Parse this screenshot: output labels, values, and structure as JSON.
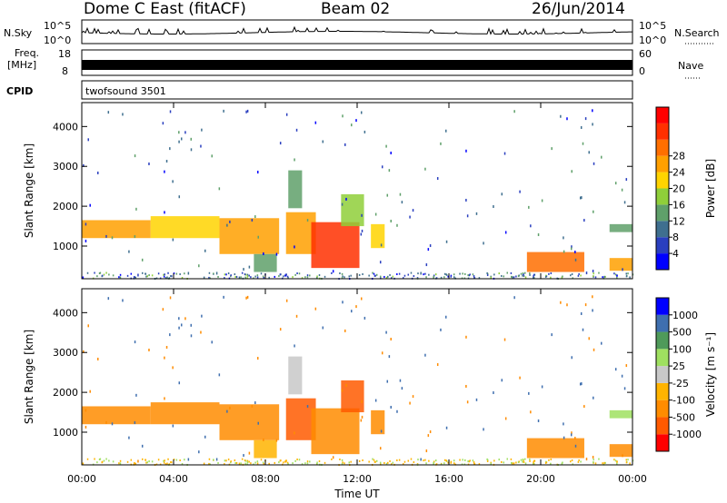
{
  "header": {
    "station": "Dome C East (fitACF)",
    "beam": "Beam 02",
    "date": "26/Jun/2014"
  },
  "side_labels": {
    "nsky": "N.Sky",
    "nsky_top": "10^5",
    "nsky_bottom": "10^0",
    "nsearch": "N.Search",
    "nsearch_top": "10^5",
    "nsearch_bottom": "10^0",
    "freq_l1": "Freq.",
    "freq_l2": "[MHz]",
    "freq_top": "18",
    "freq_bottom": "8",
    "nave": "Nave",
    "nave_top": "60",
    "nave_bottom": "0",
    "cpid": "CPID",
    "cpid_value": "twofsound 3501"
  },
  "colors": {
    "power_scale": [
      "#0000ff",
      "#2a3fbf",
      "#3f6f8f",
      "#5fa06a",
      "#8fcf3a",
      "#ffd400",
      "#ffa000",
      "#ff6f00",
      "#ff3000",
      "#ff0000"
    ],
    "velocity_scale": [
      "#ff0000",
      "#ff5a00",
      "#ff8c00",
      "#ffb400",
      "#c8c8c8",
      "#9fe060",
      "#4f9a5a",
      "#3f6faf",
      "#0000ff"
    ]
  },
  "chart_data": [
    {
      "type": "heatmap",
      "name": "power",
      "x_ticks": [
        "00:00",
        "04:00",
        "08:00",
        "12:00",
        "16:00",
        "20:00",
        "00:00"
      ],
      "xlim_hours": [
        0,
        24
      ],
      "xlabel": "Time UT",
      "ylabel": "Slant Range [km]",
      "y_ticks": [
        "1000",
        "2000",
        "3000",
        "4000"
      ],
      "ylim_km": [
        180,
        4600
      ],
      "colorbar_label": "Power [dB]",
      "colorbar_ticks": [
        "4",
        "8",
        "12",
        "16",
        "20",
        "24",
        "28"
      ],
      "colorbar_range": [
        0,
        32
      ],
      "regions": [
        {
          "t0": 0.0,
          "t1": 3.0,
          "r0": 1200,
          "r1": 1650,
          "value": 20
        },
        {
          "t0": 3.0,
          "t1": 6.0,
          "r0": 1200,
          "r1": 1750,
          "value": 18
        },
        {
          "t0": 6.0,
          "t1": 8.6,
          "r0": 800,
          "r1": 1700,
          "value": 21
        },
        {
          "t0": 7.5,
          "t1": 8.5,
          "r0": 350,
          "r1": 800,
          "value": 12
        },
        {
          "t0": 8.9,
          "t1": 10.2,
          "r0": 800,
          "r1": 1850,
          "value": 20
        },
        {
          "t0": 9.0,
          "t1": 9.6,
          "r0": 1950,
          "r1": 2900,
          "value": 10
        },
        {
          "t0": 10.0,
          "t1": 12.1,
          "r0": 450,
          "r1": 1600,
          "value": 28
        },
        {
          "t0": 11.3,
          "t1": 12.3,
          "r0": 1500,
          "r1": 2300,
          "value": 14
        },
        {
          "t0": 12.6,
          "t1": 13.2,
          "r0": 950,
          "r1": 1550,
          "value": 18
        },
        {
          "t0": 19.4,
          "t1": 21.9,
          "r0": 350,
          "r1": 850,
          "value": 24
        },
        {
          "t0": 23.0,
          "t1": 24.0,
          "r0": 380,
          "r1": 700,
          "value": 22
        },
        {
          "t0": 23.0,
          "t1": 24.0,
          "r0": 1350,
          "r1": 1550,
          "value": 10
        }
      ]
    },
    {
      "type": "heatmap",
      "name": "velocity",
      "x_ticks": [
        "00:00",
        "04:00",
        "08:00",
        "12:00",
        "16:00",
        "20:00",
        "00:00"
      ],
      "xlim_hours": [
        0,
        24
      ],
      "xlabel": "Time UT",
      "ylabel": "Slant Range [km]",
      "y_ticks": [
        "1000",
        "2000",
        "3000",
        "4000"
      ],
      "ylim_km": [
        180,
        4600
      ],
      "colorbar_label": "Velocity [m s⁻¹]",
      "colorbar_ticks": [
        "-1000",
        "-500",
        "-100",
        "-25",
        "25",
        "100",
        "500",
        "1000"
      ],
      "regions": [
        {
          "t0": 0.0,
          "t1": 3.0,
          "r0": 1200,
          "r1": 1650,
          "value": -100
        },
        {
          "t0": 3.0,
          "t1": 6.0,
          "r0": 1200,
          "r1": 1750,
          "value": -100
        },
        {
          "t0": 6.0,
          "t1": 8.6,
          "r0": 800,
          "r1": 1700,
          "value": -100
        },
        {
          "t0": 7.5,
          "t1": 8.5,
          "r0": 350,
          "r1": 800,
          "value": -25
        },
        {
          "t0": 8.9,
          "t1": 10.2,
          "r0": 800,
          "r1": 1850,
          "value": -500
        },
        {
          "t0": 9.0,
          "t1": 9.6,
          "r0": 1950,
          "r1": 2900,
          "value": 25
        },
        {
          "t0": 10.0,
          "t1": 12.1,
          "r0": 450,
          "r1": 1600,
          "value": -100
        },
        {
          "t0": 11.3,
          "t1": 12.3,
          "r0": 1500,
          "r1": 2300,
          "value": -500
        },
        {
          "t0": 12.6,
          "t1": 13.2,
          "r0": 950,
          "r1": 1550,
          "value": -100
        },
        {
          "t0": 19.4,
          "t1": 21.9,
          "r0": 350,
          "r1": 850,
          "value": -100
        },
        {
          "t0": 23.0,
          "t1": 24.0,
          "r0": 380,
          "r1": 700,
          "value": -100
        },
        {
          "t0": 23.0,
          "t1": 24.0,
          "r0": 1350,
          "r1": 1550,
          "value": 100
        }
      ]
    }
  ]
}
